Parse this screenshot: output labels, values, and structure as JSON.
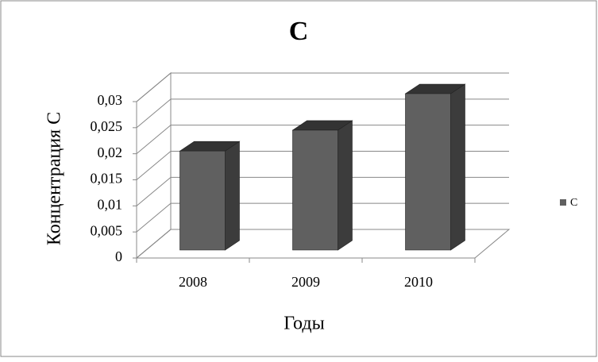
{
  "chart_data": {
    "type": "bar3d",
    "title": "С",
    "x_label": "Годы",
    "y_label": "Концентрация С",
    "categories": [
      "2008",
      "2009",
      "2010"
    ],
    "series": [
      {
        "name": "С",
        "color": "#606060",
        "values": [
          0.019,
          0.023,
          0.03
        ]
      }
    ],
    "ylim": [
      0,
      0.03
    ],
    "yticks": [
      0,
      {
        "value": 0.005,
        "label": "0,005"
      },
      {
        "value": 0.01,
        "label": "0,01"
      },
      {
        "value": 0.015,
        "label": "0,015"
      },
      {
        "value": 0.02,
        "label": "0,02"
      },
      {
        "value": 0.025,
        "label": "0,025"
      },
      {
        "value": 0.03,
        "label": "0,03"
      }
    ],
    "grid": true,
    "legend": "right"
  }
}
